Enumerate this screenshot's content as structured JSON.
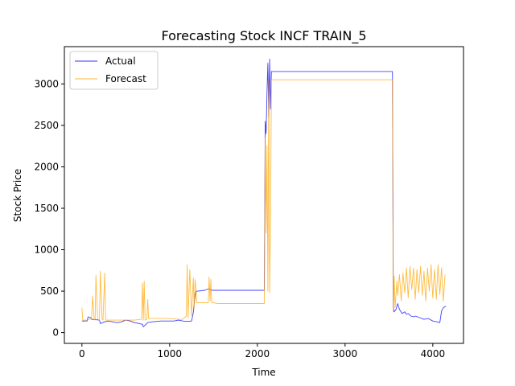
{
  "chart_data": {
    "type": "line",
    "title": "Forecasting Stock INCF TRAIN_5",
    "xlabel": "Time",
    "ylabel": "Stock Price",
    "xlim": [
      -200,
      4350
    ],
    "ylim": [
      -130,
      3450
    ],
    "xticks": [
      0,
      1000,
      2000,
      3000,
      4000
    ],
    "yticks": [
      0,
      500,
      1000,
      1500,
      2000,
      2500,
      3000
    ],
    "grid": false,
    "legend": "upper left",
    "colors": {
      "Actual": "#0000ff",
      "Forecast": "#ffa500"
    },
    "series": [
      {
        "name": "Actual",
        "x": [
          0,
          60,
          70,
          100,
          110,
          200,
          210,
          260,
          300,
          350,
          400,
          450,
          500,
          550,
          600,
          650,
          690,
          700,
          720,
          750,
          800,
          900,
          1000,
          1050,
          1100,
          1150,
          1200,
          1250,
          1270,
          1290,
          1300,
          1320,
          1400,
          1420,
          1450,
          1480,
          1500,
          1600,
          1700,
          1800,
          1900,
          2000,
          2080,
          2090,
          2100,
          2110,
          2120,
          2130,
          2140,
          2150,
          2160,
          3540,
          3550,
          3560,
          3580,
          3600,
          3620,
          3650,
          3680,
          3700,
          3720,
          3750,
          3780,
          3800,
          3850,
          3900,
          3950,
          4000,
          4050,
          4080,
          4100,
          4120,
          4150
        ],
        "y": [
          140,
          140,
          190,
          180,
          160,
          150,
          110,
          130,
          140,
          130,
          120,
          130,
          150,
          140,
          120,
          110,
          100,
          70,
          90,
          120,
          130,
          140,
          140,
          140,
          150,
          140,
          135,
          140,
          240,
          440,
          500,
          500,
          510,
          520,
          530,
          510,
          510,
          510,
          510,
          510,
          510,
          510,
          510,
          2550,
          2400,
          2900,
          3250,
          2600,
          3300,
          2700,
          3150,
          3150,
          300,
          250,
          280,
          350,
          280,
          230,
          250,
          220,
          230,
          200,
          190,
          200,
          180,
          160,
          170,
          140,
          130,
          120,
          260,
          300,
          320
        ]
      },
      {
        "name": "Forecast",
        "x": [
          0,
          10,
          20,
          60,
          110,
          120,
          140,
          150,
          160,
          180,
          200,
          210,
          230,
          240,
          260,
          270,
          300,
          350,
          400,
          500,
          600,
          680,
          690,
          700,
          710,
          720,
          740,
          750,
          760,
          770,
          800,
          900,
          1000,
          1100,
          1150,
          1190,
          1200,
          1210,
          1230,
          1250,
          1270,
          1280,
          1290,
          1300,
          1310,
          1320,
          1400,
          1440,
          1450,
          1460,
          1470,
          1480,
          1500,
          1550,
          1600,
          1700,
          1800,
          1900,
          2000,
          2080,
          2090,
          2100,
          2110,
          2120,
          2130,
          2140,
          2150,
          2160,
          3540,
          3550,
          3560,
          3570,
          3590,
          3600,
          3620,
          3640,
          3660,
          3680,
          3700,
          3720,
          3740,
          3760,
          3780,
          3800,
          3820,
          3840,
          3860,
          3880,
          3900,
          3920,
          3940,
          3960,
          3980,
          4000,
          4020,
          4040,
          4060,
          4080,
          4100,
          4120,
          4140
        ],
        "y": [
          300,
          150,
          150,
          150,
          170,
          440,
          160,
          150,
          690,
          160,
          150,
          740,
          160,
          150,
          720,
          150,
          150,
          150,
          150,
          150,
          150,
          160,
          600,
          150,
          620,
          150,
          160,
          400,
          170,
          170,
          170,
          170,
          170,
          160,
          160,
          200,
          820,
          180,
          760,
          200,
          660,
          300,
          640,
          520,
          360,
          360,
          360,
          360,
          670,
          380,
          640,
          360,
          360,
          350,
          350,
          350,
          350,
          350,
          350,
          350,
          2350,
          1200,
          2250,
          500,
          3050,
          480,
          1370,
          3050,
          3050,
          250,
          680,
          300,
          620,
          450,
          700,
          380,
          720,
          480,
          780,
          420,
          800,
          520,
          780,
          400,
          760,
          480,
          800,
          450,
          740,
          380,
          780,
          500,
          820,
          420,
          760,
          400,
          820,
          460,
          780,
          380,
          700
        ]
      }
    ]
  }
}
